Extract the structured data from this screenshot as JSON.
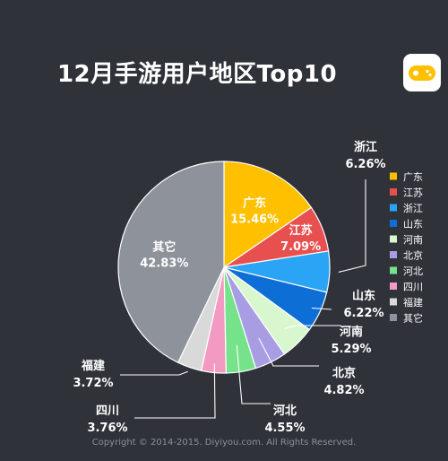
{
  "title": "12月手游用户地区Top10",
  "copyright": "Copyright © 2014-2015. Diyiyou.com. All Rights Reserved.",
  "logo_icon": "gamepad-icon",
  "chart_data": {
    "type": "pie",
    "title": "12月手游用户地区Top10",
    "legend_position": "right",
    "slices": [
      {
        "label": "广东",
        "value": 15.46,
        "display": "15.46%",
        "color": "#ffc000"
      },
      {
        "label": "江苏",
        "value": 7.09,
        "display": "7.09%",
        "color": "#e8504f"
      },
      {
        "label": "浙江",
        "value": 6.26,
        "display": "6.26%",
        "color": "#2aa4f4"
      },
      {
        "label": "山东",
        "value": 6.22,
        "display": "6.22%",
        "color": "#0d6ed6"
      },
      {
        "label": "河南",
        "value": 5.29,
        "display": "5.29%",
        "color": "#d9f7cf"
      },
      {
        "label": "北京",
        "value": 4.82,
        "display": "4.82%",
        "color": "#a89de3"
      },
      {
        "label": "河北",
        "value": 4.55,
        "display": "4.55%",
        "color": "#76e38b"
      },
      {
        "label": "四川",
        "value": 3.76,
        "display": "3.76%",
        "color": "#f39ac2"
      },
      {
        "label": "福建",
        "value": 3.72,
        "display": "3.72%",
        "color": "#d9d9d9"
      },
      {
        "label": "其它",
        "value": 42.83,
        "display": "42.83%",
        "color": "#8e939b"
      }
    ]
  }
}
